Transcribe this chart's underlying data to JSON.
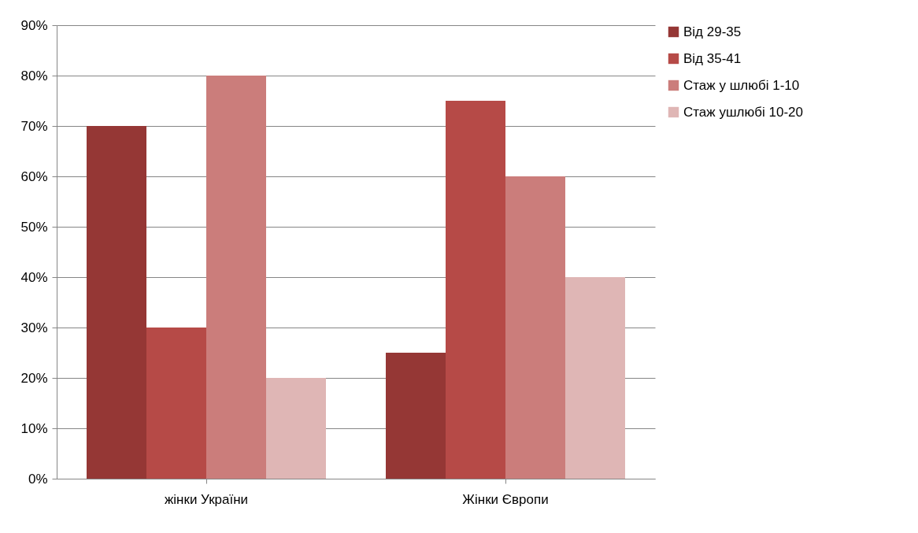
{
  "chart_data": {
    "type": "bar",
    "categories": [
      "жінки України",
      "Жінки Європи"
    ],
    "series": [
      {
        "name": "Від 29-35",
        "color": "#953735",
        "values": [
          70,
          25
        ]
      },
      {
        "name": "Від 35-41",
        "color": "#b64a47",
        "values": [
          30,
          75
        ]
      },
      {
        "name": "Стаж у шлюбі 1-10",
        "color": "#cb7d7b",
        "values": [
          80,
          60
        ]
      },
      {
        "name": "Стаж ушлюбі 10-20",
        "color": "#dfb6b5",
        "values": [
          20,
          40
        ]
      }
    ],
    "ylim": [
      0,
      90
    ],
    "yticks": [
      {
        "value": 0,
        "label": "0%"
      },
      {
        "value": 10,
        "label": "10%"
      },
      {
        "value": 20,
        "label": "20%"
      },
      {
        "value": 30,
        "label": "30%"
      },
      {
        "value": 40,
        "label": "40%"
      },
      {
        "value": 50,
        "label": "50%"
      },
      {
        "value": 60,
        "label": "60%"
      },
      {
        "value": 70,
        "label": "70%"
      },
      {
        "value": 80,
        "label": "80%"
      },
      {
        "value": 90,
        "label": "90%"
      }
    ],
    "grid": "y",
    "legend": "right"
  }
}
